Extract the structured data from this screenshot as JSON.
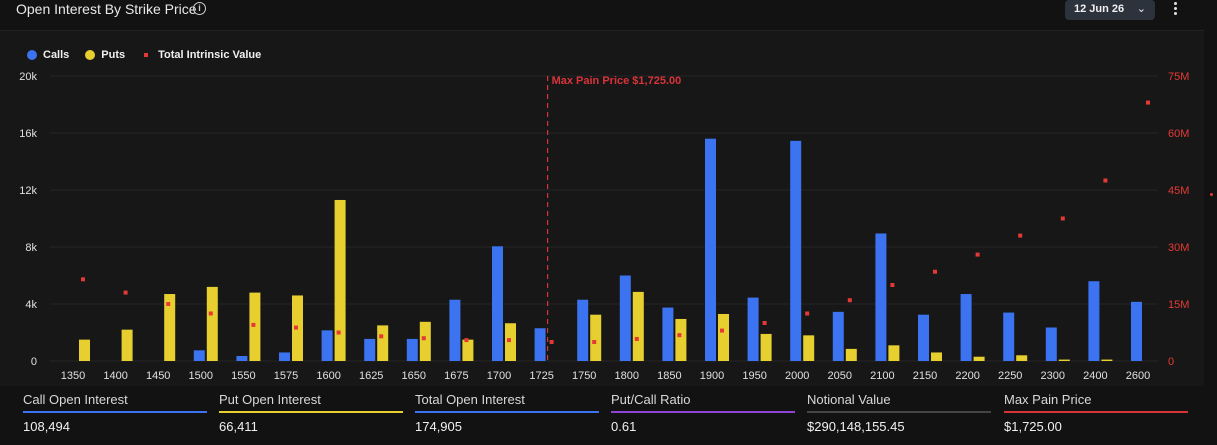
{
  "header": {
    "title": "Open Interest By Strike Price",
    "date_label": "12 Jun 26"
  },
  "colors": {
    "calls": "#3b73f0",
    "puts": "#e6cf2e",
    "intrinsic": "#e53935",
    "max_pain": "#d9333a",
    "notional": "#444444",
    "ratio": "#8e44d6"
  },
  "legend": {
    "calls": "Calls",
    "puts": "Puts",
    "intrinsic": "Total Intrinsic Value"
  },
  "chart_data": {
    "type": "bar",
    "categories": [
      "1350",
      "1400",
      "1450",
      "1500",
      "1550",
      "1575",
      "1600",
      "1625",
      "1650",
      "1675",
      "1700",
      "1725",
      "1750",
      "1800",
      "1850",
      "1900",
      "1950",
      "2000",
      "2050",
      "2100",
      "2150",
      "2200",
      "2250",
      "2300",
      "2400",
      "2600"
    ],
    "series": [
      {
        "name": "Calls",
        "axis": "left",
        "values": [
          0,
          0,
          0,
          750,
          350,
          600,
          2150,
          1550,
          1550,
          4300,
          8050,
          2300,
          4300,
          6000,
          3750,
          15600,
          4450,
          15450,
          3450,
          8950,
          3250,
          4700,
          3400,
          2350,
          5600,
          4150
        ]
      },
      {
        "name": "Puts",
        "axis": "left",
        "values": [
          1500,
          2200,
          4700,
          5200,
          4800,
          4600,
          11300,
          2500,
          2750,
          1500,
          2650,
          0,
          3250,
          4850,
          2950,
          3300,
          1900,
          1800,
          850,
          1100,
          600,
          300,
          400,
          100,
          100,
          0
        ]
      },
      {
        "name": "Total Intrinsic Value",
        "axis": "right",
        "type": "scatter",
        "values": [
          21500000,
          18000000,
          15000000,
          12500000,
          9500000,
          8800000,
          7500000,
          6500000,
          6000000,
          5500000,
          5500000,
          5000000,
          5000000,
          5800000,
          6800000,
          8000000,
          10000000,
          12500000,
          16000000,
          20000000,
          23500000,
          28000000,
          33000000,
          37500000,
          47500000,
          68000000
        ]
      }
    ],
    "y_left": {
      "min": 0,
      "max": 20000,
      "ticks": [
        0,
        4000,
        8000,
        12000,
        16000,
        20000
      ],
      "tick_labels": [
        "0",
        "4k",
        "8k",
        "12k",
        "16k",
        "20k"
      ]
    },
    "y_right": {
      "min": 0,
      "max": 75000000,
      "ticks": [
        0,
        15000000,
        30000000,
        45000000,
        60000000,
        75000000
      ],
      "tick_labels": [
        "0",
        "15M",
        "30M",
        "45M",
        "60M",
        "75M"
      ]
    },
    "max_pain": {
      "strike": "1725",
      "label": "Max Pain Price $1,725.00"
    },
    "grid": true,
    "legend_position": "top-left"
  },
  "stats": [
    {
      "label": "Call Open Interest",
      "value": "108,494",
      "color": "#3b73f0"
    },
    {
      "label": "Put Open Interest",
      "value": "66,411",
      "color": "#e6cf2e"
    },
    {
      "label": "Total Open Interest",
      "value": "174,905",
      "color": "#3b73f0"
    },
    {
      "label": "Put/Call Ratio",
      "value": "0.61",
      "color": "#8e44d6"
    },
    {
      "label": "Notional Value",
      "value": "$290,148,155.45",
      "color": "#444444"
    },
    {
      "label": "Max Pain Price",
      "value": "$1,725.00",
      "color": "#d9333a"
    }
  ]
}
